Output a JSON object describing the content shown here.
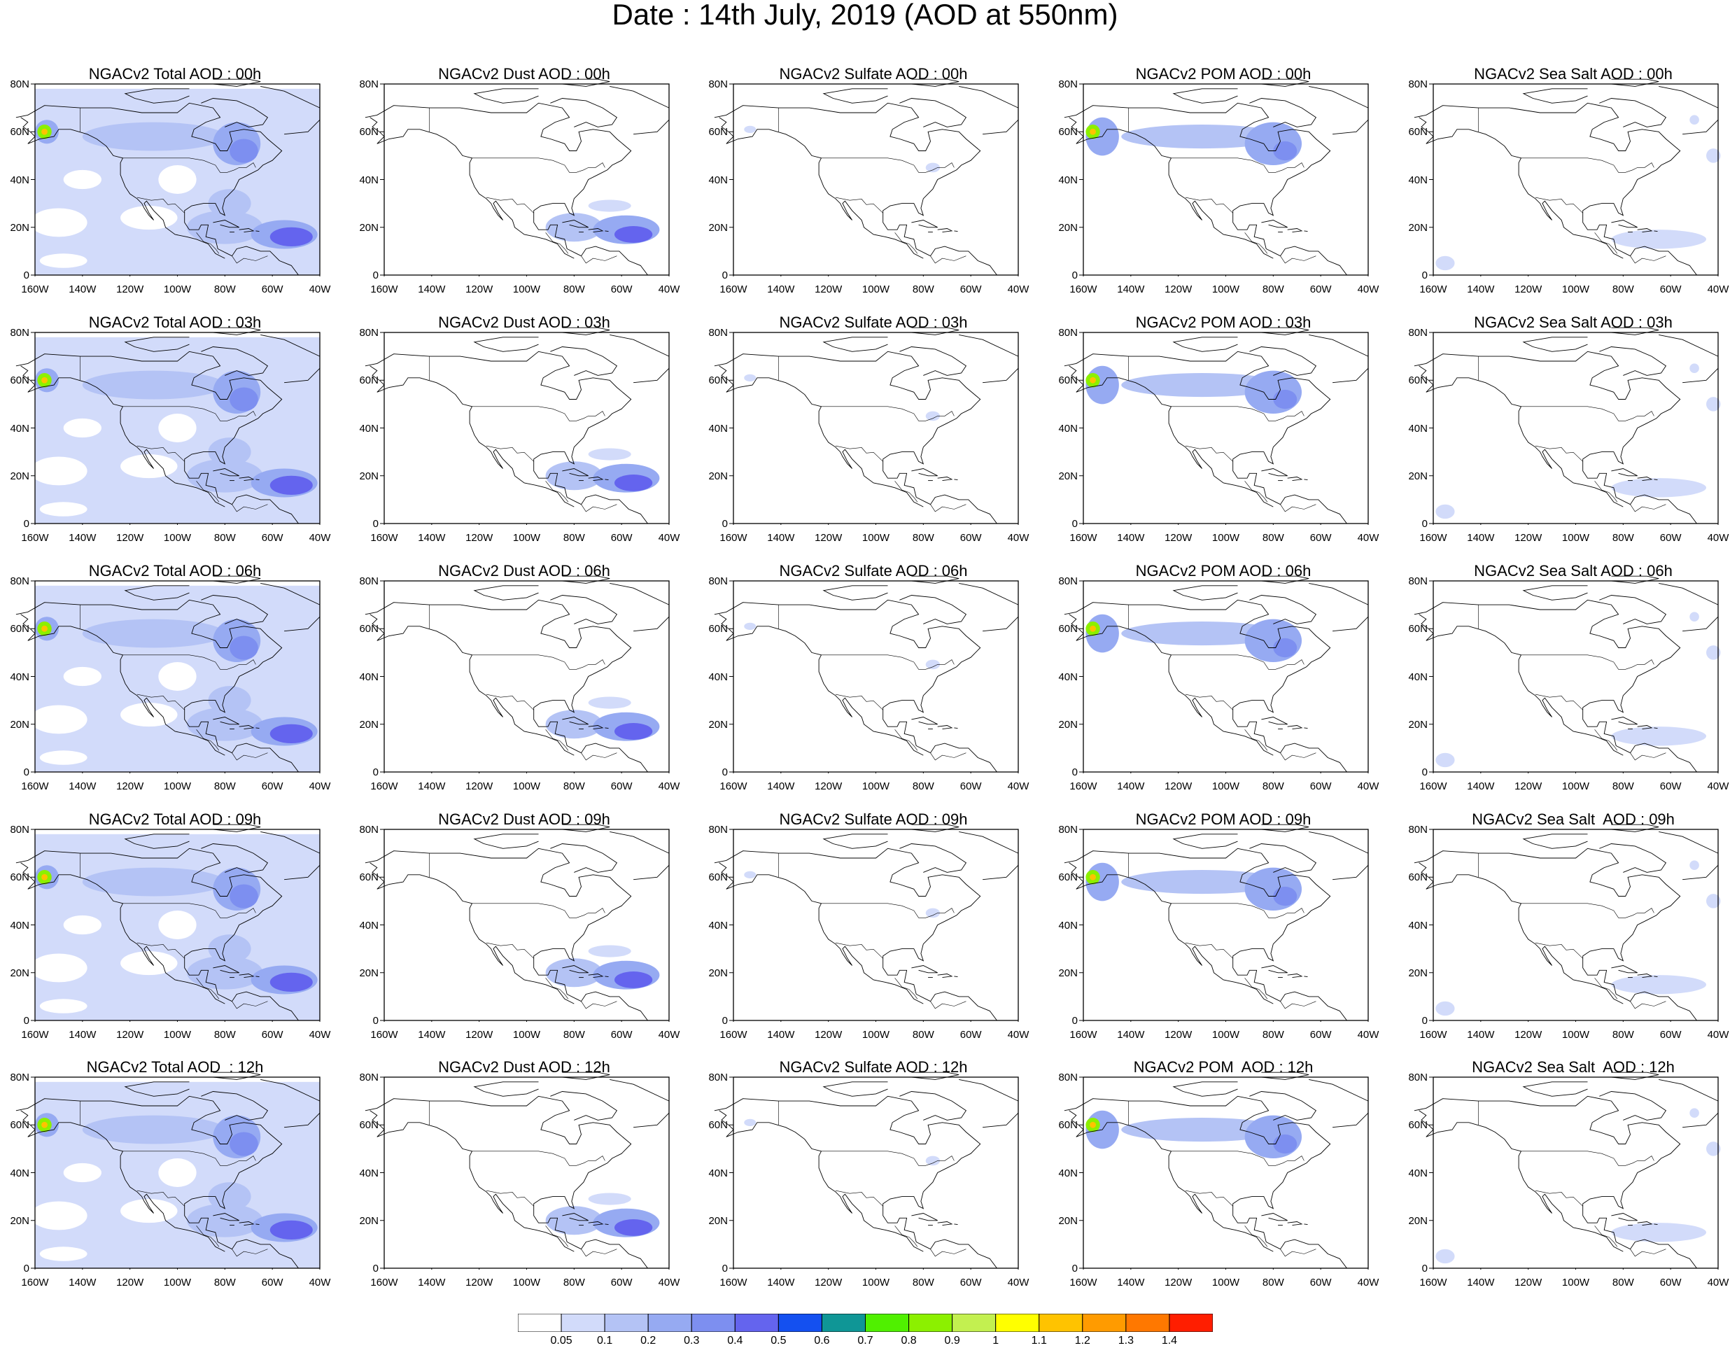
{
  "title": "Date : 14th July, 2019 (AOD at 550nm)",
  "axes": {
    "lat_labels": [
      "80N",
      "60N",
      "40N",
      "20N",
      "0"
    ],
    "lon_labels": [
      "160W",
      "140W",
      "120W",
      "100W",
      "80W",
      "60W",
      "40W"
    ],
    "lat_range": [
      0,
      80
    ],
    "lon_range": [
      -160,
      -40
    ]
  },
  "panels": [
    {
      "title": "NGACv2 Total AOD : 00h",
      "species": "total",
      "hour": "00h"
    },
    {
      "title": "NGACv2 Dust AOD : 00h",
      "species": "dust",
      "hour": "00h"
    },
    {
      "title": "NGACv2 Sulfate AOD : 00h",
      "species": "sulfate",
      "hour": "00h"
    },
    {
      "title": "NGACv2 POM AOD : 00h",
      "species": "pom",
      "hour": "00h"
    },
    {
      "title": "NGACv2 Sea Salt AOD : 00h",
      "species": "seasalt",
      "hour": "00h"
    },
    {
      "title": "NGACv2 Total AOD : 03h",
      "species": "total",
      "hour": "03h"
    },
    {
      "title": "NGACv2 Dust AOD : 03h",
      "species": "dust",
      "hour": "03h"
    },
    {
      "title": "NGACv2 Sulfate AOD : 03h",
      "species": "sulfate",
      "hour": "03h"
    },
    {
      "title": "NGACv2 POM AOD : 03h",
      "species": "pom",
      "hour": "03h"
    },
    {
      "title": "NGACv2 Sea Salt AOD : 03h",
      "species": "seasalt",
      "hour": "03h"
    },
    {
      "title": "NGACv2 Total AOD : 06h",
      "species": "total",
      "hour": "06h"
    },
    {
      "title": "NGACv2 Dust AOD : 06h",
      "species": "dust",
      "hour": "06h"
    },
    {
      "title": "NGACv2 Sulfate AOD : 06h",
      "species": "sulfate",
      "hour": "06h"
    },
    {
      "title": "NGACv2 POM AOD : 06h",
      "species": "pom",
      "hour": "06h"
    },
    {
      "title": "NGACv2 Sea Salt AOD : 06h",
      "species": "seasalt",
      "hour": "06h"
    },
    {
      "title": "NGACv2 Total AOD : 09h",
      "species": "total",
      "hour": "09h"
    },
    {
      "title": "NGACv2 Dust AOD : 09h",
      "species": "dust",
      "hour": "09h"
    },
    {
      "title": "NGACv2 Sulfate AOD : 09h",
      "species": "sulfate",
      "hour": "09h"
    },
    {
      "title": "NGACv2 POM AOD : 09h",
      "species": "pom",
      "hour": "09h"
    },
    {
      "title": "NGACv2 Sea Salt  AOD : 09h",
      "species": "seasalt",
      "hour": "09h"
    },
    {
      "title": "NGACv2 Total AOD  : 12h",
      "species": "total",
      "hour": "12h"
    },
    {
      "title": "NGACv2 Dust AOD : 12h",
      "species": "dust",
      "hour": "12h"
    },
    {
      "title": "NGACv2 Sulfate AOD : 12h",
      "species": "sulfate",
      "hour": "12h"
    },
    {
      "title": "NGACv2 POM  AOD : 12h",
      "species": "pom",
      "hour": "12h"
    },
    {
      "title": "NGACv2 Sea Salt  AOD : 12h",
      "species": "seasalt",
      "hour": "12h"
    }
  ],
  "colorbar": {
    "colors": [
      "#ffffff",
      "#d2dbfa",
      "#b4c3f5",
      "#96aaf2",
      "#7d8ff0",
      "#6464ee",
      "#1450f0",
      "#0f9696",
      "#50f000",
      "#8cf000",
      "#c3f050",
      "#ffff00",
      "#ffc300",
      "#ff9b00",
      "#ff7800",
      "#ff1e00"
    ],
    "labels": [
      "0.05",
      "0.1",
      "0.2",
      "0.3",
      "0.4",
      "0.5",
      "0.6",
      "0.7",
      "0.8",
      "0.9",
      "1",
      "1.1",
      "1.2",
      "1.3",
      "1.4"
    ]
  }
}
